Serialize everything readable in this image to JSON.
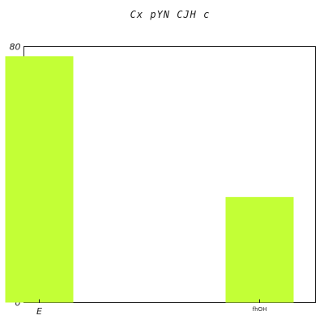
{
  "chart_data": {
    "type": "bar",
    "title": "Cx pYN CJH c",
    "categories": [
      "E",
      "fhOH"
    ],
    "values": [
      77,
      33
    ],
    "xlabel": "",
    "ylabel": "",
    "ylim": [
      0,
      80
    ],
    "yticks": [
      0,
      10,
      20,
      30,
      40,
      50,
      60,
      70,
      80
    ],
    "grid": false,
    "bar_color": "#c3ff36"
  }
}
